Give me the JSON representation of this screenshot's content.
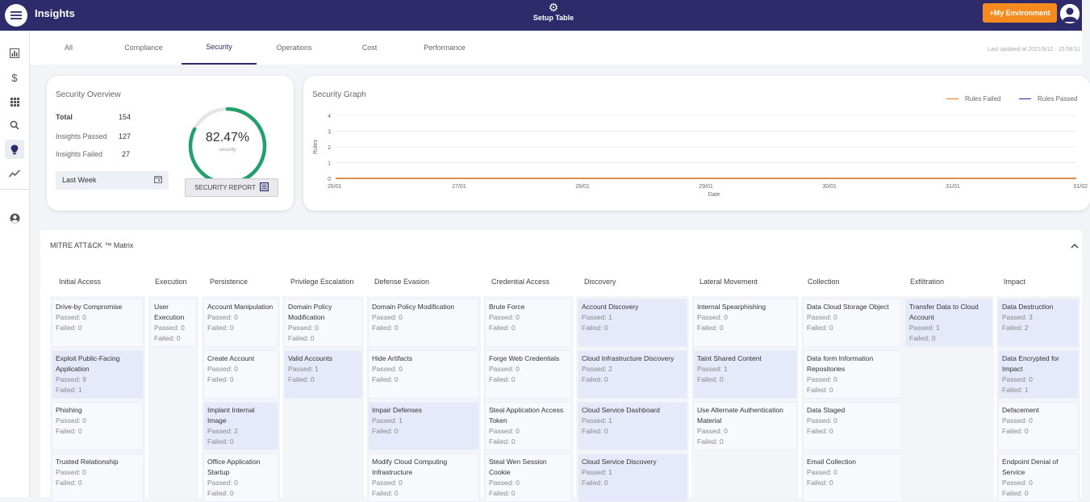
{
  "topbar": {
    "title": "Insights",
    "setup_label": "Setup Table",
    "env_button": "+My Environment",
    "menu_icon": "hamburger-icon",
    "setup_icon": "gear-icon",
    "avatar_icon": "user-avatar-icon"
  },
  "sidebar": {
    "items": [
      {
        "icon": "bar-chart-icon"
      },
      {
        "icon": "dollar-icon"
      },
      {
        "icon": "apps-grid-icon"
      },
      {
        "icon": "search-icon"
      },
      {
        "icon": "lightbulb-icon",
        "active": true
      },
      {
        "icon": "trending-icon"
      },
      {
        "icon": "account-circle-icon"
      }
    ]
  },
  "tabs": [
    "All",
    "Compliance",
    "Security",
    "Operations",
    "Cost",
    "Performance"
  ],
  "active_tab": "Security",
  "last_updated": "Last updated at 2021/9/12 · 15:58:51",
  "overview": {
    "title": "Security Overview",
    "total_label": "Total",
    "total_value": "154",
    "passed_label": "Insights Passed",
    "passed_value": "127",
    "failed_label": "Insights Failed",
    "failed_value": "27",
    "period": "Last Week",
    "percent_text": "82.47%",
    "percent_value": 0.8247,
    "percent_sub": "security",
    "report_button": "SECURITY REPORT",
    "accent": "#21a06b"
  },
  "graph": {
    "title": "Security Graph",
    "legend_failed": "Rules Failed",
    "legend_passed": "Rules Passed",
    "failed_color": "#e07b1a",
    "passed_color": "#2b2ba8",
    "ylabel": "Rules",
    "xlabel": "Date"
  },
  "chart_data": {
    "type": "line",
    "x": [
      "26/01",
      "27/01",
      "28/01",
      "29/01",
      "30/01",
      "31/01",
      "01/02"
    ],
    "series": [
      {
        "name": "Rules Failed",
        "values": [
          0,
          0,
          0,
          0,
          0,
          0,
          0
        ]
      },
      {
        "name": "Rules Passed",
        "values": [
          0,
          0,
          0,
          0,
          0,
          0,
          0
        ]
      }
    ],
    "yticks": [
      "4",
      "3",
      "2",
      "1",
      "0"
    ],
    "ylim": [
      0,
      4
    ],
    "xlabel": "Date",
    "ylabel": "Rules",
    "grid": true,
    "legend": "top-right"
  },
  "matrix": {
    "title": "MITRE ATT&CK ™ Matrix",
    "columns": [
      {
        "name": "Initial Access",
        "tiles": [
          {
            "name": "Drive-by Compromise",
            "passed": "Passed: 0",
            "failed": "Failed: 0",
            "hl": false
          },
          {
            "name": "Exploit Public-Facing Application",
            "passed": "Passed: 9",
            "failed": "Failed: 1",
            "hl": true
          },
          {
            "name": "Phishing",
            "passed": "Passed: 0",
            "failed": "Failed: 0",
            "hl": false
          },
          {
            "name": "Trusted Relationship",
            "passed": "Passed: 0",
            "failed": "Failed: 0",
            "hl": false
          }
        ]
      },
      {
        "name": "Execution",
        "tiles": [
          {
            "name": "User Execution",
            "passed": "Passed: 0",
            "failed": "Failed: 0",
            "hl": false
          }
        ]
      },
      {
        "name": "Persistence",
        "tiles": [
          {
            "name": "Account Manipulation",
            "passed": "Passed: 0",
            "failed": "Failed: 0",
            "hl": false
          },
          {
            "name": "Create Account",
            "passed": "Passed: 0",
            "failed": "Failed: 0",
            "hl": false
          },
          {
            "name": "Implant Internal Image",
            "passed": "Passed: 2",
            "failed": "Failed: 0",
            "hl": true
          },
          {
            "name": "Office Application Startup",
            "passed": "Passed: 0",
            "failed": "Failed: 0",
            "hl": false
          }
        ]
      },
      {
        "name": "Privilege Escalation",
        "tiles": [
          {
            "name": "Domain Policy Modification",
            "passed": "Passed: 0",
            "failed": "Failed: 0",
            "hl": false
          },
          {
            "name": "Valid Accounts",
            "passed": "Passed: 1",
            "failed": "Failed: 0",
            "hl": true
          }
        ]
      },
      {
        "name": "Defense Evasion",
        "tiles": [
          {
            "name": "Domain Policy Modification",
            "passed": "Passed: 0",
            "failed": "Failed: 0",
            "hl": false
          },
          {
            "name": "Hide Artifacts",
            "passed": "Passed: 0",
            "failed": "Failed: 0",
            "hl": false
          },
          {
            "name": "Impair Defenses",
            "passed": "Passed: 1",
            "failed": "Failed: 0",
            "hl": true
          },
          {
            "name": "Modify Cloud Computing Infrastructure",
            "passed": "Passed: 0",
            "failed": "Failed: 0",
            "hl": false
          }
        ]
      },
      {
        "name": "Credential Access",
        "tiles": [
          {
            "name": "Brute Force",
            "passed": "Passed: 0",
            "failed": "Failed: 0",
            "hl": false
          },
          {
            "name": "Forge Web Credentials",
            "passed": "Passed: 0",
            "failed": "Failed: 0",
            "hl": false
          },
          {
            "name": "Steal Application Access Token",
            "passed": "Passed: 0",
            "failed": "Failed: 0",
            "hl": false
          },
          {
            "name": "Steal Wen Session Cookie",
            "passed": "Passed: 0",
            "failed": "Failed: 0",
            "hl": false
          }
        ]
      },
      {
        "name": "Discovery",
        "tiles": [
          {
            "name": "Account Discovery",
            "passed": "Passed: 1",
            "failed": "Failed: 0",
            "hl": true
          },
          {
            "name": "Cloud Infrastructure Discovery",
            "passed": "Passed: 2",
            "failed": "Failed: 0",
            "hl": true
          },
          {
            "name": "Cloud Service Dashboard",
            "passed": "Passed: 1",
            "failed": "Failed: 0",
            "hl": true
          },
          {
            "name": "Cloud Service Discovery",
            "passed": "Passed: 1",
            "failed": "Failed: 0",
            "hl": true
          }
        ]
      },
      {
        "name": "Lateral Movement",
        "tiles": [
          {
            "name": "Internal Spearphishing",
            "passed": "Passed: 0",
            "failed": "Failed: 0",
            "hl": false
          },
          {
            "name": "Taint Shared Content",
            "passed": "Passed: 1",
            "failed": "Failed: 0",
            "hl": true
          },
          {
            "name": "Use Alternate Authentication Material",
            "passed": "Passed: 0",
            "failed": "Failed: 0",
            "hl": false
          }
        ]
      },
      {
        "name": "Collection",
        "tiles": [
          {
            "name": "Data Cloud Storage Object",
            "passed": "Passed: 0",
            "failed": "Failed: 0",
            "hl": false
          },
          {
            "name": "Data form Information Repositories",
            "passed": "Passed: 0",
            "failed": "Failed: 0",
            "hl": false
          },
          {
            "name": "Data Staged",
            "passed": "Passed: 0",
            "failed": "Failed: 0",
            "hl": false
          },
          {
            "name": "Email Collection",
            "passed": "Passed: 0",
            "failed": "Failed: 0",
            "hl": false
          }
        ]
      },
      {
        "name": "Exfiltration",
        "tiles": [
          {
            "name": "Transfer Data to Cloud Account",
            "passed": "Passed: 1",
            "failed": "Failed: 0",
            "hl": true
          }
        ]
      },
      {
        "name": "Impact",
        "tiles": [
          {
            "name": "Data Destruction",
            "passed": "Passed: 3",
            "failed": "Failed: 2",
            "hl": true
          },
          {
            "name": "Data Encrypted for Impact",
            "passed": "Passed: 0",
            "failed": "Failed: 1",
            "hl": true
          },
          {
            "name": "Defacement",
            "passed": "Passed: 0",
            "failed": "Failed: 0",
            "hl": false
          },
          {
            "name": "Endpoint Denial of Service",
            "passed": "Passed: 0",
            "failed": "Failed: 0",
            "hl": false
          }
        ]
      }
    ]
  }
}
